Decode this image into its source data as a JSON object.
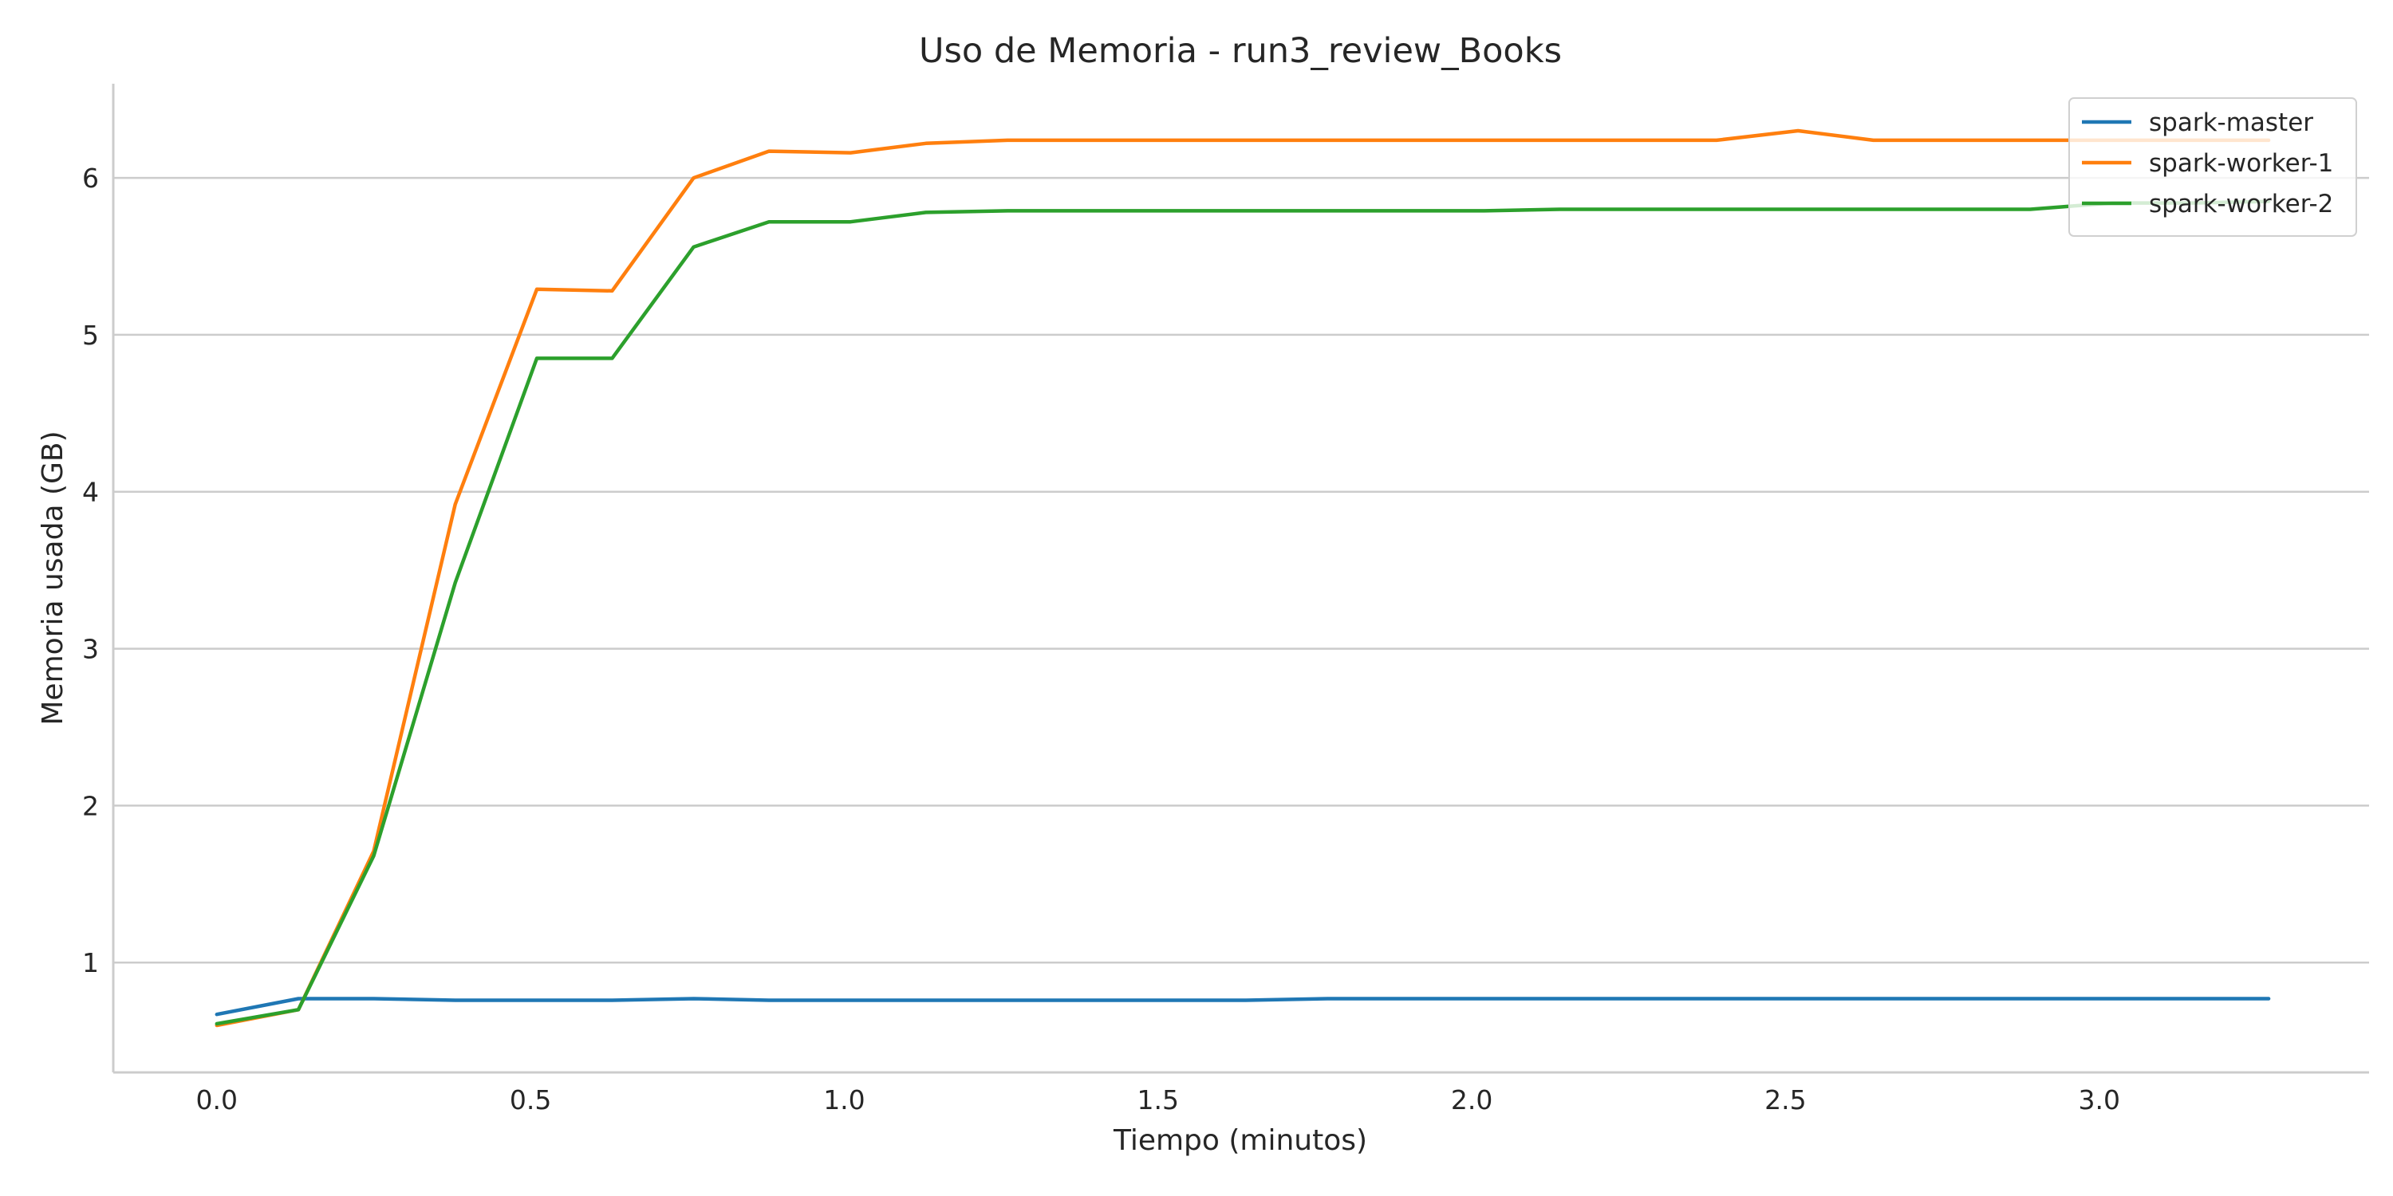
{
  "chart_data": {
    "type": "line",
    "title": "Uso de Memoria - run3_review_Books",
    "xlabel": "Tiempo (minutos)",
    "ylabel": "Memoria usada (GB)",
    "xlim": [
      -0.165,
      3.43
    ],
    "ylim": [
      0.3,
      6.6
    ],
    "xticks": [
      0.0,
      0.5,
      1.0,
      1.5,
      2.0,
      2.5,
      3.0
    ],
    "xtick_labels": [
      "0.0",
      "0.5",
      "1.0",
      "1.5",
      "2.0",
      "2.5",
      "3.0"
    ],
    "yticks": [
      1,
      2,
      3,
      4,
      5,
      6
    ],
    "ytick_labels": [
      "1",
      "2",
      "3",
      "4",
      "5",
      "6"
    ],
    "grid": "horizontal",
    "legend_position": "top-right",
    "x": [
      0.0,
      0.13,
      0.25,
      0.38,
      0.51,
      0.63,
      0.76,
      0.88,
      1.01,
      1.13,
      1.26,
      1.39,
      1.51,
      1.64,
      1.77,
      1.89,
      2.02,
      2.14,
      2.27,
      2.39,
      2.52,
      2.64,
      2.77,
      2.89,
      3.02,
      3.15,
      3.27
    ],
    "series": [
      {
        "name": "spark-master",
        "color": "#1f77b4",
        "values": [
          0.67,
          0.77,
          0.77,
          0.76,
          0.76,
          0.76,
          0.77,
          0.76,
          0.76,
          0.76,
          0.76,
          0.76,
          0.76,
          0.76,
          0.77,
          0.77,
          0.77,
          0.77,
          0.77,
          0.77,
          0.77,
          0.77,
          0.77,
          0.77,
          0.77,
          0.77,
          0.77
        ]
      },
      {
        "name": "spark-worker-1",
        "color": "#ff7f0e",
        "values": [
          0.6,
          0.7,
          1.71,
          3.92,
          5.29,
          5.28,
          6.0,
          6.17,
          6.16,
          6.22,
          6.24,
          6.24,
          6.24,
          6.24,
          6.24,
          6.24,
          6.24,
          6.24,
          6.24,
          6.24,
          6.3,
          6.24,
          6.24,
          6.24,
          6.24,
          6.24,
          6.24
        ]
      },
      {
        "name": "spark-worker-2",
        "color": "#2ca02c",
        "values": [
          0.61,
          0.7,
          1.68,
          3.42,
          4.85,
          4.85,
          5.56,
          5.72,
          5.72,
          5.78,
          5.79,
          5.79,
          5.79,
          5.79,
          5.79,
          5.79,
          5.79,
          5.8,
          5.8,
          5.8,
          5.8,
          5.8,
          5.8,
          5.8,
          5.84,
          5.84,
          5.85
        ]
      }
    ]
  }
}
